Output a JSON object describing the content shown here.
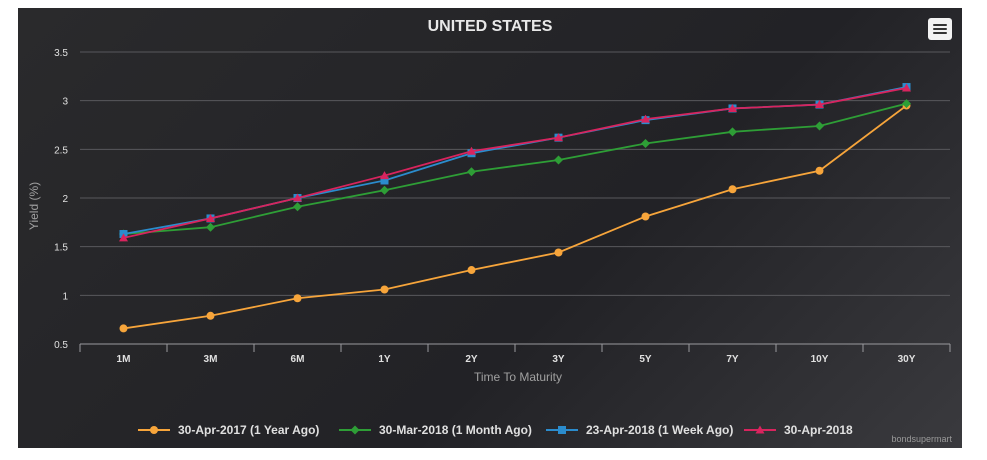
{
  "chart_data": {
    "type": "line",
    "title": "UNITED STATES",
    "xlabel": "Time To Maturity",
    "ylabel": "Yield (%)",
    "ylim": [
      0.5,
      3.5
    ],
    "yticks": [
      "0.5",
      "1",
      "1.5",
      "2",
      "2.5",
      "3",
      "3.5"
    ],
    "ytick_values": [
      0.5,
      1,
      1.5,
      2,
      2.5,
      3,
      3.5
    ],
    "grid": true,
    "legend_position": "bottom",
    "categories": [
      "1M",
      "3M",
      "6M",
      "1Y",
      "2Y",
      "3Y",
      "5Y",
      "7Y",
      "10Y",
      "30Y"
    ],
    "series": [
      {
        "name": "30-Apr-2017 (1 Year Ago)",
        "color": "#f7a53b",
        "marker": "circle",
        "values": [
          0.66,
          0.79,
          0.97,
          1.06,
          1.26,
          1.44,
          1.81,
          2.09,
          2.28,
          2.95
        ]
      },
      {
        "name": "30-Mar-2018 (1 Month Ago)",
        "color": "#2e9e36",
        "marker": "diamond",
        "values": [
          1.63,
          1.7,
          1.91,
          2.08,
          2.27,
          2.39,
          2.56,
          2.68,
          2.74,
          2.97
        ]
      },
      {
        "name": "23-Apr-2018 (1 Week Ago)",
        "color": "#2b8ccd",
        "marker": "square",
        "values": [
          1.63,
          1.79,
          2.0,
          2.18,
          2.46,
          2.62,
          2.8,
          2.92,
          2.96,
          3.14
        ]
      },
      {
        "name": "30-Apr-2018",
        "color": "#d8245e",
        "marker": "triangle",
        "values": [
          1.59,
          1.79,
          2.0,
          2.23,
          2.48,
          2.62,
          2.81,
          2.92,
          2.96,
          3.13
        ]
      }
    ]
  },
  "credit": "bondsupermart",
  "menu_icon": "hamburger-menu-icon"
}
